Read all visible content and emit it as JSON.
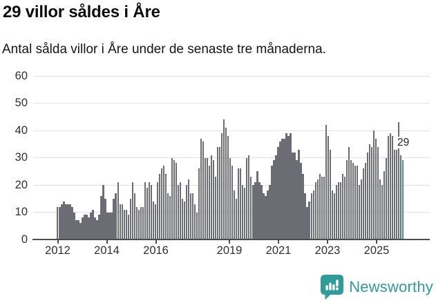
{
  "header": {
    "title": "29 villor såldes i Åre",
    "subtitle": "Antal sålda villor i Åre under de senaste tre månaderna."
  },
  "chart_data": {
    "type": "bar",
    "title": "29 villor såldes i Åre",
    "subtitle": "Antal sålda villor i Åre under de senaste tre månaderna.",
    "x_start_month": "2012-01",
    "x_end_month": "2025-11",
    "x_tick_years": [
      2012,
      2014,
      2016,
      2019,
      2021,
      2023,
      2025
    ],
    "x_tick_labels": [
      "2012",
      "2014",
      "2016",
      "2019",
      "2021",
      "2023",
      "2025"
    ],
    "y_ticks": [
      0,
      10,
      20,
      30,
      40,
      50,
      60
    ],
    "ylim": [
      0,
      60
    ],
    "grid": true,
    "bar_color": "#6C6C74",
    "series": [
      {
        "name": "Antal sålda villor, rullande tre månader",
        "values": [
          12,
          12,
          13,
          14,
          13,
          13,
          13,
          12,
          10,
          7,
          7,
          6,
          8,
          9,
          9,
          8,
          10,
          11,
          8,
          7,
          9,
          16,
          20,
          15,
          10,
          10,
          10,
          15,
          17,
          21,
          13,
          13,
          11,
          11,
          9,
          15,
          21,
          17,
          12,
          11,
          12,
          12,
          21,
          19,
          21,
          20,
          14,
          13,
          21,
          24,
          26,
          27,
          24,
          17,
          16,
          30,
          29,
          28,
          20,
          21,
          15,
          14,
          20,
          22,
          17,
          17,
          13,
          10,
          26,
          37,
          36,
          30,
          30,
          27,
          31,
          29,
          23,
          34,
          34,
          39,
          44,
          41,
          38,
          30,
          27,
          18,
          15,
          26,
          26,
          20,
          19,
          30,
          31,
          23,
          20,
          21,
          25,
          21,
          20,
          17,
          16,
          18,
          20,
          27,
          29,
          31,
          34,
          36,
          37,
          37,
          39,
          38,
          39,
          32,
          32,
          29,
          33,
          28,
          24,
          17,
          12,
          14,
          17,
          18,
          21,
          22,
          24,
          23,
          23,
          42,
          38,
          33,
          18,
          17,
          20,
          21,
          21,
          24,
          23,
          29,
          34,
          29,
          28,
          27,
          27,
          20,
          22,
          26,
          28,
          32,
          35,
          34,
          40,
          37,
          34,
          22,
          20,
          25,
          30,
          38,
          39,
          38,
          33,
          33,
          43,
          31,
          29
        ]
      }
    ],
    "highlight": {
      "index": 166,
      "value": 29,
      "label": "29",
      "color": "#2B9C98"
    }
  },
  "annotation": {
    "label": "29"
  },
  "logo": {
    "text": "Newsworthy",
    "color": "#2E9C98",
    "icon": "newsworthy-bar-chart-bubble-icon"
  },
  "colors": {
    "bar": "#6C6C74",
    "highlight": "#2B9C98",
    "gridline": "#e2e2e4",
    "axis": "#4a4a52",
    "text": "#2f2f2f",
    "background": "#ffffff"
  }
}
